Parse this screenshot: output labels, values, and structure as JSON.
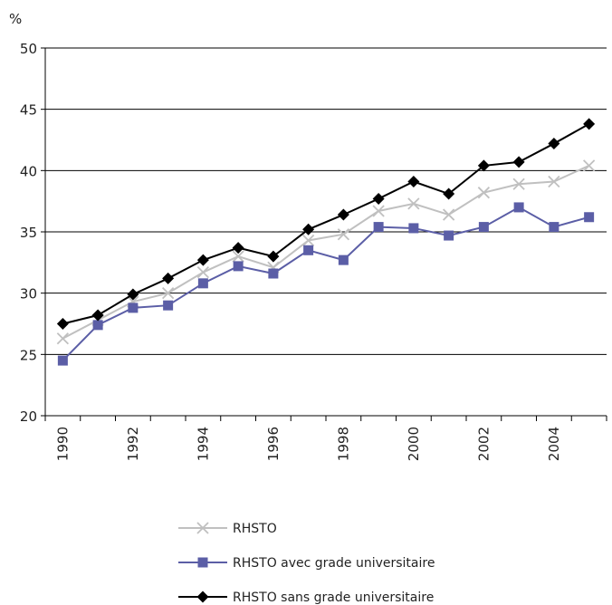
{
  "chart_data": {
    "type": "line",
    "title": "",
    "xlabel": "",
    "ylabel": "%",
    "ylim": [
      20,
      50
    ],
    "yticks": [
      20,
      25,
      30,
      35,
      40,
      45,
      50
    ],
    "x": [
      1990,
      1991,
      1992,
      1993,
      1994,
      1995,
      1996,
      1997,
      1998,
      1999,
      2000,
      2001,
      2002,
      2003,
      2004,
      2005
    ],
    "xtick_labels": [
      "1990",
      "1992",
      "1994",
      "1996",
      "1998",
      "2000",
      "2002",
      "2004"
    ],
    "grid": "horizontal",
    "legend_position": "bottom",
    "series": [
      {
        "name": "RHSTO",
        "color": "#c0c0c0",
        "marker": "x",
        "values": [
          26.3,
          27.8,
          29.3,
          30.0,
          31.7,
          33.0,
          32.1,
          34.3,
          34.8,
          36.7,
          37.3,
          36.4,
          38.2,
          38.9,
          39.1,
          40.4
        ]
      },
      {
        "name": "RHSTO avec grade universitaire",
        "color": "#5b5ea6",
        "marker": "square",
        "values": [
          24.5,
          27.4,
          28.8,
          29.0,
          30.8,
          32.2,
          31.6,
          33.5,
          32.7,
          35.4,
          35.3,
          34.7,
          35.4,
          37.0,
          35.4,
          36.2
        ]
      },
      {
        "name": "RHSTO sans grade universitaire",
        "color": "#000000",
        "marker": "diamond",
        "values": [
          27.5,
          28.2,
          29.9,
          31.2,
          32.7,
          33.7,
          33.0,
          35.2,
          36.4,
          37.7,
          39.1,
          38.1,
          40.4,
          40.7,
          42.2,
          43.8
        ]
      }
    ]
  }
}
